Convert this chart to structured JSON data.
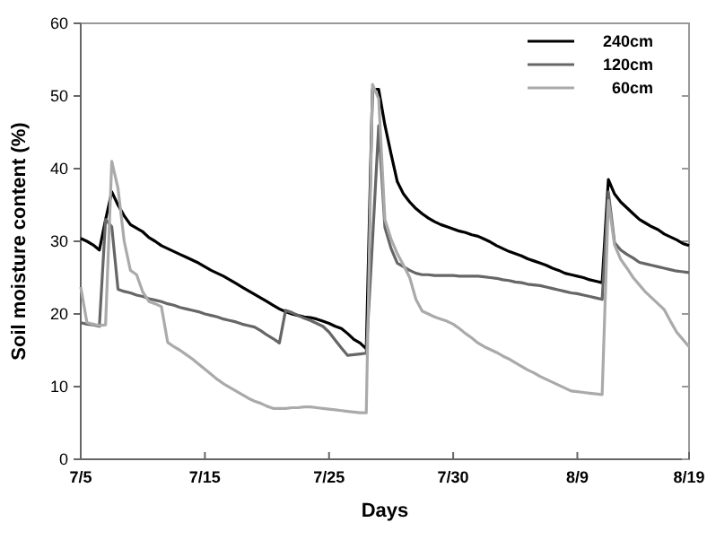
{
  "chart_data": {
    "type": "line",
    "xlabel": "Days",
    "ylabel": "Soil moisture content (%)",
    "categories": [
      "7/5",
      null,
      null,
      null,
      null,
      null,
      null,
      null,
      null,
      null,
      null,
      null,
      null,
      null,
      null,
      null,
      null,
      null,
      null,
      null,
      "7/15",
      null,
      null,
      null,
      null,
      null,
      null,
      null,
      null,
      null,
      null,
      null,
      null,
      null,
      null,
      null,
      null,
      null,
      null,
      null,
      "7/25",
      null,
      null,
      null,
      null,
      null,
      null,
      null,
      null,
      null,
      null,
      null,
      null,
      null,
      null,
      null,
      null,
      null,
      null,
      null,
      "7/30",
      null,
      null,
      null,
      null,
      null,
      null,
      null,
      null,
      null,
      null,
      null,
      null,
      null,
      null,
      null,
      null,
      null,
      null,
      null,
      "8/9",
      null,
      null,
      null,
      null,
      null,
      null,
      null,
      null,
      null,
      null,
      null,
      null,
      null,
      null,
      null,
      null,
      null,
      "8/19"
    ],
    "ylim": [
      0,
      60
    ],
    "yticks": [
      0,
      10,
      20,
      30,
      40,
      50,
      60
    ],
    "grid": false,
    "legend": "top right",
    "marker": "none",
    "line_style": "solid",
    "series": [
      {
        "name": "240cm",
        "color": "#000000",
        "values": [
          30.4,
          30,
          29.5,
          28.8,
          33,
          36.8,
          35,
          33.5,
          32.3,
          31.8,
          31.3,
          30.5,
          30,
          29.4,
          29,
          28.6,
          28.2,
          27.8,
          27.4,
          27,
          26.5,
          26,
          25.6,
          25.2,
          24.7,
          24.2,
          23.7,
          23.2,
          22.7,
          22.2,
          21.7,
          21.2,
          20.7,
          20.3,
          20,
          19.8,
          19.6,
          19.5,
          19.3,
          19,
          18.7,
          18.3,
          18,
          17.3,
          16.5,
          16,
          15.2,
          50.9,
          50.9,
          46,
          42,
          38.2,
          36.5,
          35.4,
          34.5,
          33.8,
          33.2,
          32.7,
          32.3,
          32,
          31.7,
          31.4,
          31.2,
          30.9,
          30.7,
          30.3,
          29.9,
          29.4,
          29,
          28.6,
          28.3,
          28,
          27.6,
          27.3,
          27,
          26.7,
          26.3,
          26,
          25.6,
          25.4,
          25.2,
          25,
          24.7,
          24.5,
          24.3,
          38.5,
          36.5,
          35.4,
          34.6,
          33.8,
          33,
          32.5,
          32,
          31.6,
          31,
          30.6,
          30.2,
          29.7,
          29.4
        ]
      },
      {
        "name": "120cm",
        "color": "#666666",
        "values": [
          18.8,
          18.6,
          18.5,
          18.3,
          33,
          32,
          23.4,
          23.1,
          22.9,
          22.6,
          22.4,
          22.1,
          21.9,
          21.7,
          21.4,
          21.2,
          20.9,
          20.7,
          20.5,
          20.3,
          20,
          19.8,
          19.6,
          19.3,
          19.1,
          18.9,
          18.6,
          18.4,
          18.2,
          17.7,
          17.1,
          16.6,
          16,
          20.5,
          20.2,
          19.8,
          19.4,
          19.1,
          18.7,
          18.3,
          17.5,
          16.4,
          15.3,
          14.3,
          14.4,
          14.5,
          14.6,
          30,
          45.9,
          31.9,
          29,
          27,
          26.5,
          26,
          25.6,
          25.4,
          25.4,
          25.3,
          25.3,
          25.3,
          25.3,
          25.2,
          25.2,
          25.2,
          25.2,
          25.1,
          25,
          24.9,
          24.7,
          24.6,
          24.4,
          24.3,
          24.1,
          24,
          23.9,
          23.7,
          23.5,
          23.3,
          23.1,
          22.9,
          22.8,
          22.6,
          22.4,
          22.2,
          22,
          36.8,
          29.8,
          28.8,
          28.2,
          27.7,
          27.1,
          26.9,
          26.7,
          26.5,
          26.3,
          26.1,
          25.9,
          25.8,
          25.7
        ]
      },
      {
        "name": "60cm",
        "color": "#aaaaaa",
        "values": [
          23.7,
          18.8,
          18.6,
          18.4,
          18.5,
          41,
          37.3,
          30,
          26,
          25.4,
          23,
          21.7,
          21.4,
          21,
          16.1,
          15.5,
          15,
          14.4,
          13.8,
          13.1,
          12.4,
          11.7,
          11,
          10.4,
          9.9,
          9.4,
          8.9,
          8.4,
          8,
          7.7,
          7.3,
          7,
          7,
          7,
          7.1,
          7.1,
          7.2,
          7.2,
          7.1,
          7,
          6.9,
          6.8,
          6.7,
          6.6,
          6.5,
          6.4,
          6.4,
          51.6,
          49.6,
          33,
          30.3,
          28.3,
          26.7,
          25,
          22,
          20.4,
          20,
          19.6,
          19.3,
          19,
          18.6,
          18,
          17.3,
          16.7,
          16,
          15.5,
          15.1,
          14.7,
          14.2,
          13.8,
          13.3,
          12.8,
          12.3,
          11.9,
          11.4,
          11,
          10.6,
          10.2,
          9.8,
          9.4,
          9.3,
          9.2,
          9.1,
          9,
          8.9,
          35.6,
          29.5,
          27.5,
          26.3,
          25,
          24,
          23,
          22.2,
          21.4,
          20.6,
          19,
          17.5,
          16.5,
          15.5
        ]
      }
    ]
  }
}
